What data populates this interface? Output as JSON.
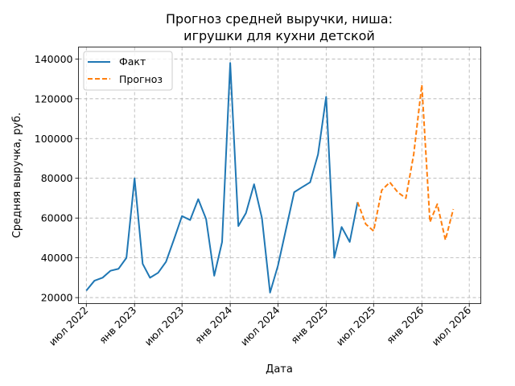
{
  "chart_data": {
    "type": "line",
    "title": [
      "Прогноз средней выручки, ниша:",
      "игрушки для кухни детской"
    ],
    "xlabel": "Дата",
    "ylabel": "Средняя выручка, руб.",
    "ylim": [
      17000,
      146000
    ],
    "xlim": [
      "2022-06-01",
      "2026-08-14"
    ],
    "grid": true,
    "grid_style": "dashed",
    "legend_position": "top-left",
    "y_ticks": [
      20000,
      40000,
      60000,
      80000,
      100000,
      120000,
      140000
    ],
    "y_tick_labels": [
      "20000",
      "40000",
      "60000",
      "80000",
      "100000",
      "120000",
      "140000"
    ],
    "x_ticks": [
      "2022-07-01",
      "2023-01-01",
      "2023-07-01",
      "2024-01-01",
      "2024-07-01",
      "2025-01-01",
      "2025-07-01",
      "2026-01-01",
      "2026-07-01"
    ],
    "x_tick_labels": [
      "июл 2022",
      "янв 2023",
      "июл 2023",
      "янв 2024",
      "июл 2024",
      "янв 2025",
      "июл 2025",
      "янв 2026",
      "июл 2026"
    ],
    "series": [
      {
        "name": "Факт",
        "color": "#1f77b4",
        "style": "solid",
        "x": [
          "2022-07-01",
          "2022-08-01",
          "2022-09-01",
          "2022-10-01",
          "2022-11-01",
          "2022-12-01",
          "2023-01-01",
          "2023-02-01",
          "2023-03-01",
          "2023-04-01",
          "2023-05-01",
          "2023-06-01",
          "2023-07-01",
          "2023-08-01",
          "2023-09-01",
          "2023-10-01",
          "2023-11-01",
          "2023-12-01",
          "2024-01-01",
          "2024-02-01",
          "2024-03-01",
          "2024-04-01",
          "2024-05-01",
          "2024-06-01",
          "2024-07-01",
          "2024-08-01",
          "2024-09-01",
          "2024-10-01",
          "2024-11-01",
          "2024-12-01",
          "2025-01-01",
          "2025-02-01",
          "2025-03-01",
          "2025-04-01",
          "2025-05-01"
        ],
        "values": [
          23500,
          28500,
          30000,
          33500,
          34500,
          40000,
          80000,
          37000,
          30000,
          32500,
          38000,
          49500,
          61000,
          59000,
          69500,
          59500,
          31000,
          48000,
          138000,
          56000,
          62500,
          77000,
          60000,
          22500,
          36000,
          54500,
          73000,
          75500,
          78000,
          92000,
          121000,
          40000,
          55500,
          48000,
          68000
        ]
      },
      {
        "name": "Прогноз",
        "color": "#ff7f0e",
        "style": "dashed",
        "x": [
          "2025-05-01",
          "2025-06-01",
          "2025-07-01",
          "2025-08-01",
          "2025-09-01",
          "2025-10-01",
          "2025-11-01",
          "2025-12-01",
          "2026-01-01",
          "2026-02-01",
          "2026-03-01",
          "2026-04-01",
          "2026-05-01"
        ],
        "values": [
          68000,
          57000,
          53500,
          74000,
          78000,
          73000,
          70000,
          92000,
          127000,
          58000,
          67000,
          49000,
          64500
        ]
      }
    ]
  }
}
